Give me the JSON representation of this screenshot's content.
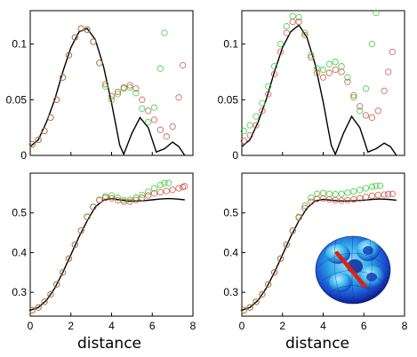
{
  "chart_data": [
    {
      "type": "line",
      "xlabel": "",
      "xlim": [
        0,
        8
      ],
      "ylim": [
        0,
        0.13
      ],
      "xticks": [
        "",
        "",
        "",
        "",
        ""
      ],
      "yticks": [
        "0",
        "0.05",
        "0.1"
      ],
      "ytick_values": [
        0,
        0.05,
        0.1
      ],
      "series": [
        {
          "kind": "line",
          "color": "#000000",
          "x": [
            0.0,
            0.4,
            0.8,
            1.2,
            1.6,
            2.0,
            2.4,
            2.8,
            3.2,
            3.6,
            4.0,
            4.2,
            4.4,
            4.6,
            5.0,
            5.4,
            5.8,
            6.2,
            6.6,
            7.0,
            7.3,
            7.6
          ],
          "y": [
            0.008,
            0.014,
            0.03,
            0.05,
            0.075,
            0.097,
            0.111,
            0.114,
            0.104,
            0.08,
            0.047,
            0.028,
            0.009,
            0.001,
            0.02,
            0.034,
            0.025,
            0.003,
            0.006,
            0.012,
            0.008,
            0.0
          ]
        },
        {
          "kind": "markers",
          "color": "#33cc33",
          "x": [
            0.1,
            0.4,
            0.7,
            1.0,
            1.3,
            1.6,
            1.9,
            2.2,
            2.5,
            2.8,
            3.1,
            3.4,
            3.7,
            4.0,
            4.3,
            4.6,
            4.9,
            5.2,
            5.5,
            5.8,
            6.1,
            6.4,
            6.6
          ],
          "y": [
            0.01,
            0.014,
            0.022,
            0.034,
            0.05,
            0.07,
            0.09,
            0.106,
            0.114,
            0.113,
            0.102,
            0.083,
            0.062,
            0.05,
            0.055,
            0.06,
            0.061,
            0.056,
            0.042,
            0.03,
            0.043,
            0.078,
            0.11
          ]
        },
        {
          "kind": "markers",
          "color": "#d05040",
          "x": [
            0.1,
            0.4,
            0.7,
            1.0,
            1.3,
            1.6,
            1.9,
            2.2,
            2.5,
            2.8,
            3.1,
            3.4,
            3.7,
            4.0,
            4.3,
            4.6,
            4.9,
            5.2,
            5.5,
            5.8,
            6.1,
            6.4,
            6.7,
            7.0,
            7.3,
            7.5
          ],
          "y": [
            0.01,
            0.014,
            0.022,
            0.034,
            0.05,
            0.07,
            0.09,
            0.106,
            0.114,
            0.113,
            0.102,
            0.083,
            0.064,
            0.053,
            0.057,
            0.061,
            0.063,
            0.06,
            0.05,
            0.04,
            0.032,
            0.023,
            0.017,
            0.026,
            0.052,
            0.081
          ]
        }
      ]
    },
    {
      "type": "line",
      "xlabel": "",
      "xlim": [
        0,
        8
      ],
      "ylim": [
        0,
        0.13
      ],
      "xticks": [
        "",
        "",
        "",
        "",
        ""
      ],
      "yticks": [
        "0",
        "0.05",
        "0.1"
      ],
      "ytick_values": [
        0,
        0.05,
        0.1
      ],
      "series": [
        {
          "kind": "line",
          "color": "#000000",
          "x": [
            0.0,
            0.4,
            0.8,
            1.2,
            1.6,
            2.0,
            2.4,
            2.8,
            3.2,
            3.6,
            4.0,
            4.2,
            4.4,
            4.6,
            5.0,
            5.4,
            5.8,
            6.2,
            6.6,
            7.0,
            7.3,
            7.6
          ],
          "y": [
            0.008,
            0.014,
            0.03,
            0.05,
            0.075,
            0.097,
            0.111,
            0.117,
            0.106,
            0.082,
            0.048,
            0.028,
            0.009,
            0.001,
            0.02,
            0.035,
            0.025,
            0.003,
            0.006,
            0.011,
            0.008,
            0.0
          ]
        },
        {
          "kind": "markers",
          "color": "#33cc33",
          "x": [
            0.1,
            0.4,
            0.7,
            1.0,
            1.3,
            1.6,
            1.9,
            2.2,
            2.5,
            2.8,
            3.1,
            3.4,
            3.7,
            4.0,
            4.3,
            4.6,
            4.9,
            5.2,
            5.5,
            5.8,
            6.1,
            6.4,
            6.6
          ],
          "y": [
            0.022,
            0.027,
            0.035,
            0.047,
            0.062,
            0.08,
            0.1,
            0.116,
            0.125,
            0.124,
            0.11,
            0.09,
            0.078,
            0.077,
            0.082,
            0.084,
            0.08,
            0.07,
            0.052,
            0.04,
            0.06,
            0.1,
            0.128
          ]
        },
        {
          "kind": "markers",
          "color": "#d05040",
          "x": [
            0.1,
            0.4,
            0.7,
            1.0,
            1.3,
            1.6,
            1.9,
            2.2,
            2.5,
            2.8,
            3.1,
            3.4,
            3.7,
            4.0,
            4.3,
            4.6,
            4.9,
            5.2,
            5.5,
            5.8,
            6.1,
            6.4,
            6.7,
            7.0,
            7.2,
            7.4
          ],
          "y": [
            0.013,
            0.018,
            0.027,
            0.04,
            0.055,
            0.073,
            0.093,
            0.11,
            0.12,
            0.12,
            0.108,
            0.088,
            0.074,
            0.07,
            0.074,
            0.077,
            0.075,
            0.066,
            0.054,
            0.044,
            0.036,
            0.034,
            0.04,
            0.058,
            0.075,
            0.093
          ]
        }
      ]
    },
    {
      "type": "line",
      "xlabel": "distance",
      "xlim": [
        0,
        8
      ],
      "ylim": [
        0.24,
        0.6
      ],
      "xticks": [
        "0",
        "2",
        "4",
        "6",
        "8"
      ],
      "yticks": [
        "0.3",
        "0.4",
        "0.5"
      ],
      "ytick_values": [
        0.3,
        0.4,
        0.5
      ],
      "series": [
        {
          "kind": "line",
          "color": "#000000",
          "x": [
            0.0,
            0.4,
            0.8,
            1.2,
            1.6,
            2.0,
            2.4,
            2.8,
            3.2,
            3.6,
            4.0,
            4.4,
            4.8,
            5.2,
            5.6,
            6.0,
            6.4,
            6.8,
            7.2,
            7.6
          ],
          "y": [
            0.255,
            0.262,
            0.28,
            0.31,
            0.35,
            0.395,
            0.44,
            0.48,
            0.515,
            0.532,
            0.536,
            0.533,
            0.53,
            0.53,
            0.531,
            0.533,
            0.535,
            0.536,
            0.535,
            0.533
          ]
        },
        {
          "kind": "markers",
          "color": "#33cc33",
          "x": [
            0.1,
            0.4,
            0.7,
            1.0,
            1.3,
            1.6,
            1.9,
            2.2,
            2.5,
            2.8,
            3.1,
            3.4,
            3.7,
            4.0,
            4.3,
            4.6,
            4.9,
            5.2,
            5.5,
            5.8,
            6.1,
            6.4,
            6.6,
            6.8
          ],
          "y": [
            0.255,
            0.262,
            0.276,
            0.295,
            0.32,
            0.35,
            0.385,
            0.42,
            0.455,
            0.49,
            0.515,
            0.533,
            0.542,
            0.544,
            0.538,
            0.532,
            0.533,
            0.538,
            0.545,
            0.553,
            0.562,
            0.57,
            0.575,
            0.575
          ]
        },
        {
          "kind": "markers",
          "color": "#d05040",
          "x": [
            0.1,
            0.4,
            0.7,
            1.0,
            1.3,
            1.6,
            1.9,
            2.2,
            2.5,
            2.8,
            3.1,
            3.4,
            3.7,
            4.0,
            4.3,
            4.6,
            4.9,
            5.2,
            5.5,
            5.8,
            6.1,
            6.4,
            6.7,
            7.0,
            7.3,
            7.5,
            7.6
          ],
          "y": [
            0.255,
            0.262,
            0.276,
            0.295,
            0.32,
            0.35,
            0.385,
            0.42,
            0.455,
            0.49,
            0.515,
            0.532,
            0.538,
            0.537,
            0.532,
            0.528,
            0.528,
            0.532,
            0.538,
            0.544,
            0.549,
            0.552,
            0.555,
            0.558,
            0.562,
            0.565,
            0.567
          ]
        }
      ]
    },
    {
      "type": "line",
      "xlabel": "distance",
      "xlim": [
        0,
        8
      ],
      "ylim": [
        0.24,
        0.6
      ],
      "xticks": [
        "0",
        "2",
        "4",
        "6",
        "8"
      ],
      "yticks": [
        "0.3",
        "0.4",
        "0.5"
      ],
      "ytick_values": [
        0.3,
        0.4,
        0.5
      ],
      "series": [
        {
          "kind": "line",
          "color": "#000000",
          "x": [
            0.0,
            0.4,
            0.8,
            1.2,
            1.6,
            2.0,
            2.4,
            2.8,
            3.2,
            3.6,
            4.0,
            4.4,
            4.8,
            5.2,
            5.6,
            6.0,
            6.4,
            6.8,
            7.2,
            7.6
          ],
          "y": [
            0.255,
            0.262,
            0.28,
            0.31,
            0.35,
            0.395,
            0.44,
            0.48,
            0.512,
            0.53,
            0.534,
            0.532,
            0.53,
            0.53,
            0.531,
            0.532,
            0.534,
            0.535,
            0.534,
            0.532
          ]
        },
        {
          "kind": "markers",
          "color": "#33cc33",
          "x": [
            0.1,
            0.4,
            0.7,
            1.0,
            1.3,
            1.6,
            1.9,
            2.2,
            2.5,
            2.8,
            3.1,
            3.4,
            3.7,
            4.0,
            4.3,
            4.6,
            4.9,
            5.2,
            5.5,
            5.8,
            6.1,
            6.4,
            6.6,
            6.8
          ],
          "y": [
            0.255,
            0.262,
            0.276,
            0.295,
            0.32,
            0.35,
            0.385,
            0.42,
            0.455,
            0.49,
            0.518,
            0.538,
            0.548,
            0.55,
            0.548,
            0.547,
            0.548,
            0.551,
            0.554,
            0.558,
            0.562,
            0.566,
            0.568,
            0.568
          ]
        },
        {
          "kind": "markers",
          "color": "#d05040",
          "x": [
            0.1,
            0.4,
            0.7,
            1.0,
            1.3,
            1.6,
            1.9,
            2.2,
            2.5,
            2.8,
            3.1,
            3.4,
            3.7,
            4.0,
            4.3,
            4.6,
            4.9,
            5.2,
            5.5,
            5.8,
            6.1,
            6.4,
            6.7,
            7.0,
            7.2,
            7.4
          ],
          "y": [
            0.255,
            0.262,
            0.276,
            0.295,
            0.32,
            0.35,
            0.385,
            0.42,
            0.455,
            0.488,
            0.512,
            0.528,
            0.535,
            0.536,
            0.534,
            0.532,
            0.531,
            0.532,
            0.534,
            0.537,
            0.54,
            0.543,
            0.545,
            0.546,
            0.547,
            0.548
          ]
        }
      ],
      "inset": "molecule-surface-image"
    }
  ]
}
